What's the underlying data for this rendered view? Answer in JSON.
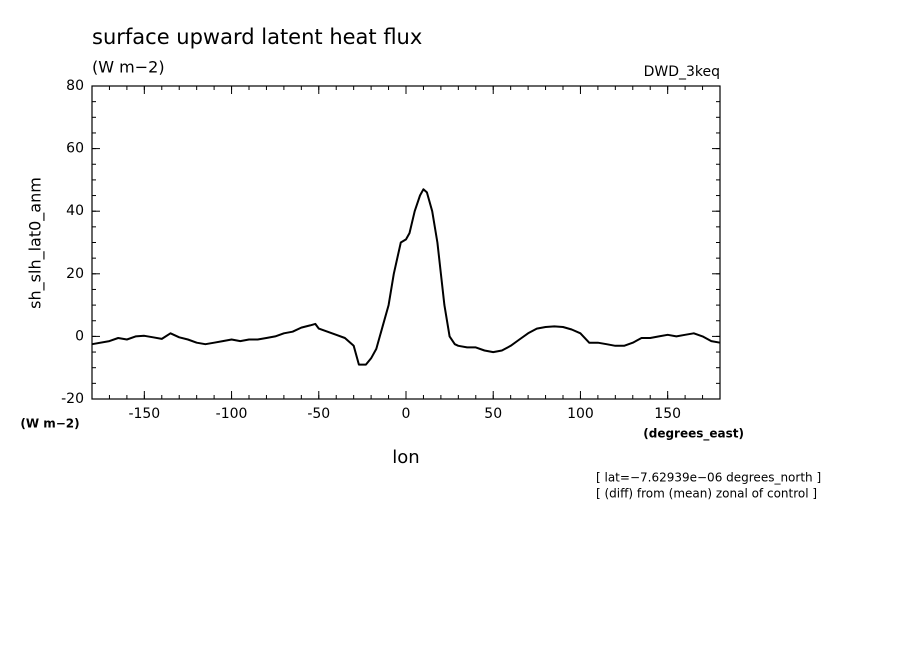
{
  "chart_data": {
    "type": "line",
    "title": "surface upward latent heat flux",
    "subtitle": "(W m−2)",
    "dataset": "DWD_3keq",
    "ylabel": "sh_slh_lat0_anm",
    "yunits": "(W m−2)",
    "xlabel": "lon",
    "xunits": "(degrees_east)",
    "notes": [
      "[ lat=−7.62939e−06 degrees_north ]",
      "[ (diff) from (mean) zonal of control ]"
    ],
    "xlim": [
      -180,
      180
    ],
    "ylim": [
      -20,
      80
    ],
    "xticks": [
      -150,
      -100,
      -50,
      0,
      50,
      100,
      150
    ],
    "yticks": [
      -20,
      0,
      20,
      40,
      60,
      80
    ],
    "series": [
      {
        "name": "sh_slh_lat0_anm",
        "color": "#000000",
        "x": [
          -180,
          -170,
          -165,
          -160,
          -155,
          -150,
          -145,
          -140,
          -135,
          -130,
          -125,
          -120,
          -115,
          -110,
          -105,
          -100,
          -95,
          -90,
          -85,
          -80,
          -75,
          -70,
          -65,
          -60,
          -55,
          -52,
          -50,
          -45,
          -40,
          -35,
          -30,
          -27,
          -23,
          -20,
          -17,
          -15,
          -10,
          -7,
          -5,
          -3,
          0,
          2,
          5,
          8,
          10,
          12,
          15,
          18,
          20,
          22,
          25,
          28,
          30,
          35,
          40,
          45,
          50,
          55,
          60,
          65,
          70,
          75,
          80,
          85,
          90,
          95,
          100,
          105,
          110,
          115,
          120,
          125,
          130,
          135,
          140,
          145,
          150,
          155,
          160,
          165,
          170,
          175,
          180
        ],
        "values": [
          -2.5,
          -1.5,
          -0.5,
          -1,
          0,
          0.2,
          -0.3,
          -0.8,
          1,
          -0.3,
          -1,
          -2,
          -2.5,
          -2,
          -1.5,
          -1,
          -1.5,
          -1,
          -1,
          -0.5,
          0,
          1,
          1.5,
          2.8,
          3.5,
          4,
          2.5,
          1.5,
          0.5,
          -0.5,
          -3,
          -9,
          -9,
          -7,
          -4,
          0,
          10,
          20,
          25,
          30,
          31,
          33,
          40,
          45,
          47,
          46,
          40,
          30,
          20,
          10,
          0,
          -2.5,
          -3,
          -3.5,
          -3.5,
          -4.5,
          -5,
          -4.5,
          -3,
          -1,
          1,
          2.5,
          3,
          3.2,
          3,
          2.2,
          1,
          -2,
          -2,
          -2.5,
          -3,
          -3,
          -2,
          -0.5,
          -0.5,
          0,
          0.5,
          0,
          0.5,
          1,
          0,
          -1.5,
          -2
        ]
      }
    ]
  }
}
